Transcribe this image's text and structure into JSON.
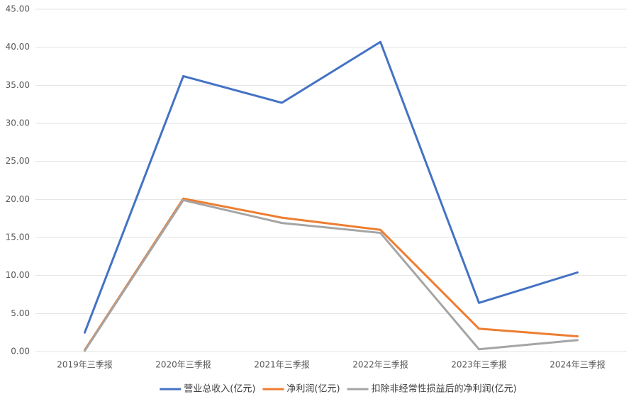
{
  "chart_data": {
    "type": "line",
    "categories": [
      "2019年三季报",
      "2020年三季报",
      "2021年三季报",
      "2022年三季报",
      "2023年三季报",
      "2024年三季报"
    ],
    "series": [
      {
        "name": "营业总收入(亿元)",
        "color": "#4472c4",
        "values": [
          2.5,
          36.2,
          32.7,
          40.7,
          6.4,
          10.4
        ]
      },
      {
        "name": "净利润(亿元)",
        "color": "#ed7d31",
        "values": [
          0.2,
          20.1,
          17.6,
          16.0,
          3.0,
          2.0
        ]
      },
      {
        "name": "扣除非经常性损益后的净利润(亿元)",
        "color": "#a5a5a5",
        "values": [
          0.1,
          19.9,
          16.9,
          15.6,
          0.3,
          1.5
        ]
      }
    ],
    "ylim": [
      0,
      45
    ],
    "yticks": [
      {
        "value": 0,
        "label": "0.00"
      },
      {
        "value": 5,
        "label": "5.00"
      },
      {
        "value": 10,
        "label": "10.00"
      },
      {
        "value": 15,
        "label": "15.00"
      },
      {
        "value": 20,
        "label": "20.00"
      },
      {
        "value": 25,
        "label": "25.00"
      },
      {
        "value": 30,
        "label": "30.00"
      },
      {
        "value": 35,
        "label": "35.00"
      },
      {
        "value": 40,
        "label": "40.00"
      },
      {
        "value": 45,
        "label": "45.00"
      }
    ],
    "grid": true,
    "legend": "bottom"
  }
}
